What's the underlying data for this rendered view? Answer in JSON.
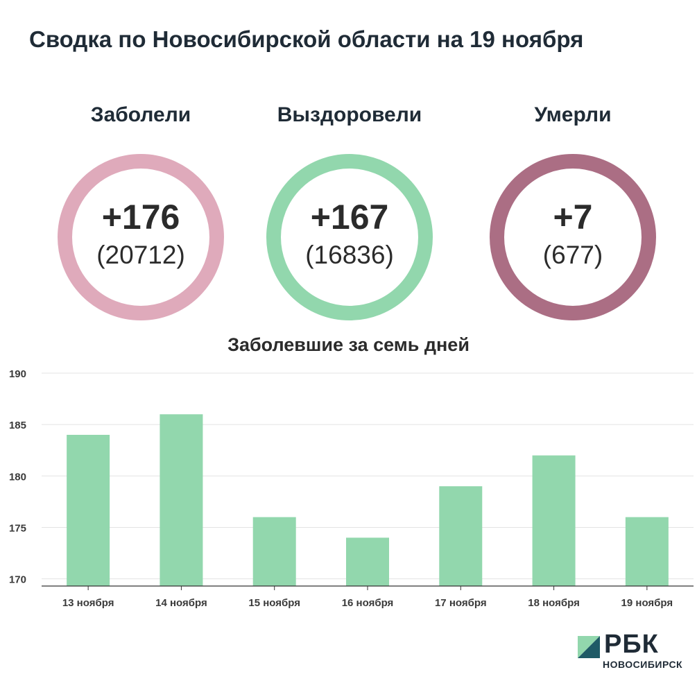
{
  "header": {
    "title": "Сводка по Новосибирской области на 19 ноября"
  },
  "stats": [
    {
      "label": "Заболели",
      "value": "+176",
      "total": "(20712)",
      "color": "#dfaabb"
    },
    {
      "label": "Выздоровели",
      "value": "+167",
      "total": "(16836)",
      "color": "#92d7ad"
    },
    {
      "label": "Умерли",
      "value": "+7",
      "total": "(677)",
      "color": "#ab6e84"
    }
  ],
  "chart_data": {
    "type": "bar",
    "title": "Заболевшие за семь дней",
    "categories": [
      "13 ноября",
      "14 ноября",
      "15 ноября",
      "16 ноября",
      "17 ноября",
      "18 ноября",
      "19 ноября"
    ],
    "values": [
      184,
      186,
      176,
      174,
      179,
      182,
      176
    ],
    "ylim": [
      169.3,
      190
    ],
    "yticks": [
      170,
      175,
      180,
      185,
      190
    ],
    "xlabel": "",
    "ylabel": "",
    "grid": true,
    "bar_color": "#92d7ad"
  },
  "logo": {
    "text": "РБК",
    "subtitle": "НОВОСИБИРСК",
    "mark_colors": [
      "#1f5a66",
      "#92d7ad"
    ]
  }
}
